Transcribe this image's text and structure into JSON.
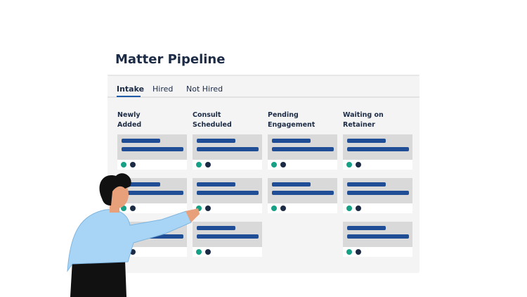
{
  "header": {
    "title": "Matter Pipeline"
  },
  "tabs": [
    "Intake",
    "Hired",
    "Not Hired"
  ],
  "columns": [
    {
      "label": [
        "Newly",
        "Added"
      ]
    },
    {
      "label": [
        "Consult",
        "Scheduled"
      ]
    },
    {
      "label": [
        "Pending",
        "Engagement"
      ]
    },
    {
      "label": [
        "Waiting on",
        "Retainer"
      ]
    }
  ]
}
